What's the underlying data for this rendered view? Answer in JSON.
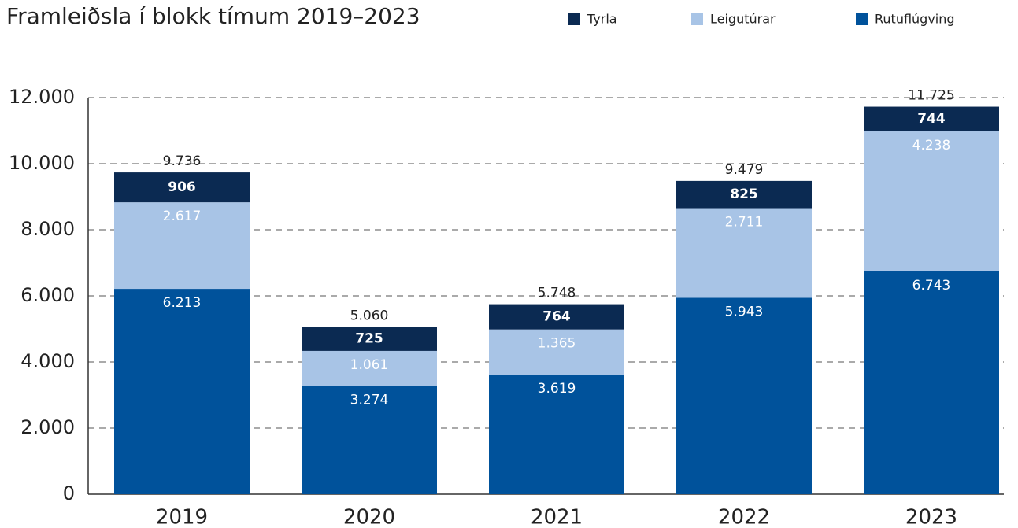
{
  "chart_data": {
    "type": "stacked_bar",
    "title": "Framleiðsla í blokk tímum 2019–2023",
    "categories": [
      "2019",
      "2020",
      "2021",
      "2022",
      "2023"
    ],
    "series": [
      {
        "name": "Rutuflúgving",
        "color": "#00529b",
        "values": [
          6213,
          3274,
          3619,
          5943,
          6743
        ],
        "value_labels": [
          "6.213",
          "3.274",
          "3.619",
          "5.943",
          "6.743"
        ]
      },
      {
        "name": "Leigutúrar",
        "color": "#a8c4e6",
        "values": [
          2617,
          1061,
          1365,
          2711,
          4238
        ],
        "value_labels": [
          "2.617",
          "1.061",
          "1.365",
          "2.711",
          "4.238"
        ]
      },
      {
        "name": "Tyrla",
        "color": "#0b2a52",
        "values": [
          906,
          725,
          764,
          825,
          744
        ],
        "value_labels": [
          "906",
          "725",
          "764",
          "825",
          "744"
        ]
      }
    ],
    "totals": {
      "values": [
        9736,
        5060,
        5748,
        9479,
        11725
      ],
      "value_labels": [
        "9.736",
        "5.060",
        "5.748",
        "9.479",
        "11.725"
      ]
    },
    "ylim": [
      0,
      12000
    ],
    "yticks": [
      0,
      {
        "value": 2000,
        "label": "2.000"
      },
      {
        "value": 4000,
        "label": "4.000"
      },
      {
        "value": 6000,
        "label": "6.000"
      },
      {
        "value": 8000,
        "label": "8.000"
      },
      {
        "value": 10000,
        "label": "10.000"
      },
      {
        "value": 12000,
        "label": "12.000"
      }
    ],
    "grid": true,
    "legend": "top-right"
  }
}
